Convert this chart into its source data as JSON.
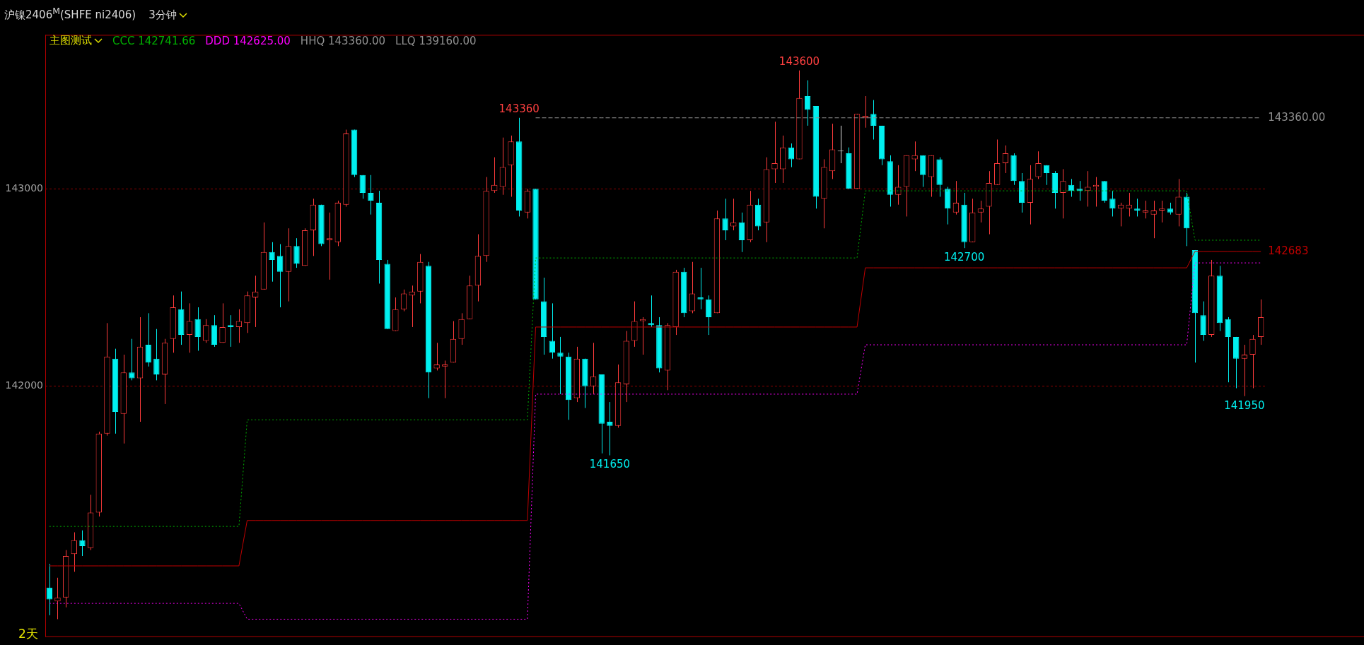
{
  "chart_data": {
    "type": "candlestick",
    "title": "沪镍2406$^{M}$(SHFE ni2406)",
    "subtitle": "3分钟",
    "legend_title": "主图测试",
    "legend": "top left",
    "grid": "y",
    "marker": "none",
    "ylim": [
      140730,
      143780
    ],
    "yticks": [
      142000,
      143000
    ],
    "categories": [
      null,
      null,
      null,
      null,
      null,
      null,
      null,
      null,
      null,
      null,
      null,
      null,
      null,
      null,
      null,
      null,
      null,
      null,
      null,
      null,
      null,
      null,
      null,
      null,
      null,
      null,
      null,
      null,
      null,
      null,
      null,
      null,
      null,
      null,
      null,
      null,
      null,
      null,
      null,
      null,
      null,
      null,
      null,
      null,
      null,
      null,
      null,
      null,
      null,
      null,
      null,
      null,
      null,
      null,
      null,
      null,
      null,
      null,
      null,
      null,
      null,
      null,
      null,
      null,
      null,
      null,
      null,
      null,
      null,
      null,
      null,
      null,
      null,
      null,
      null,
      null,
      null,
      null,
      null,
      null,
      null,
      null,
      null,
      null,
      null,
      null,
      null,
      null,
      null,
      null,
      null,
      null,
      null,
      null,
      null,
      null,
      null,
      null,
      null,
      null,
      null,
      null,
      null,
      null,
      null,
      null,
      null,
      null,
      null,
      null,
      null,
      null,
      null,
      null,
      null,
      null,
      null,
      null,
      null,
      null,
      null,
      null,
      null,
      null,
      null,
      null,
      null,
      null,
      null,
      null,
      null,
      null,
      null,
      null,
      null,
      null,
      null,
      null,
      null,
      null,
      null,
      null,
      null,
      null,
      null,
      null,
      null,
      null
    ],
    "ohlc": [
      [
        140980,
        141100,
        140840,
        140920
      ],
      [
        140910,
        141030,
        140820,
        140930
      ],
      [
        140930,
        141170,
        140880,
        141140
      ],
      [
        141150,
        141260,
        141060,
        141220
      ],
      [
        141220,
        141270,
        141140,
        141190
      ],
      [
        141180,
        141450,
        141170,
        141360
      ],
      [
        141360,
        141770,
        141340,
        141760
      ],
      [
        141760,
        142320,
        141750,
        142150
      ],
      [
        142140,
        142190,
        141760,
        141870
      ],
      [
        141860,
        142160,
        141710,
        142070
      ],
      [
        142070,
        142240,
        142030,
        142040
      ],
      [
        142040,
        142350,
        141820,
        142200
      ],
      [
        142210,
        142370,
        142100,
        142120
      ],
      [
        142140,
        142290,
        142030,
        142060
      ],
      [
        142060,
        142240,
        141910,
        142220
      ],
      [
        142240,
        142460,
        142170,
        142400
      ],
      [
        142390,
        142480,
        142210,
        142260
      ],
      [
        142260,
        142420,
        142170,
        142330
      ],
      [
        142340,
        142400,
        142180,
        142250
      ],
      [
        142230,
        142340,
        142220,
        142310
      ],
      [
        142310,
        142360,
        142200,
        142210
      ],
      [
        142220,
        142420,
        142220,
        142300
      ],
      [
        142310,
        142360,
        142200,
        142300
      ],
      [
        142300,
        142390,
        142220,
        142330
      ],
      [
        142320,
        142480,
        142270,
        142460
      ],
      [
        142450,
        142560,
        142300,
        142480
      ],
      [
        142490,
        142830,
        142490,
        142680
      ],
      [
        142680,
        142730,
        142530,
        142640
      ],
      [
        142660,
        142720,
        142400,
        142580
      ],
      [
        142580,
        142800,
        142430,
        142710
      ],
      [
        142710,
        142750,
        142600,
        142620
      ],
      [
        142610,
        142800,
        142610,
        142790
      ],
      [
        142790,
        142950,
        142660,
        142920
      ],
      [
        142920,
        142920,
        142710,
        142720
      ],
      [
        142740,
        142880,
        142540,
        142750
      ],
      [
        142730,
        142940,
        142710,
        142930
      ],
      [
        142920,
        143300,
        142910,
        143280
      ],
      [
        143300,
        143300,
        143060,
        143070
      ],
      [
        143070,
        143070,
        142950,
        142980
      ],
      [
        142980,
        143070,
        142870,
        142940
      ],
      [
        142930,
        142990,
        142520,
        142640
      ],
      [
        142620,
        142640,
        142290,
        142290
      ],
      [
        142280,
        142450,
        142280,
        142390
      ],
      [
        142390,
        142490,
        142380,
        142470
      ],
      [
        142460,
        142510,
        142300,
        142480
      ],
      [
        142480,
        142670,
        142420,
        142630
      ],
      [
        142610,
        142630,
        141940,
        142070
      ],
      [
        142090,
        142220,
        142080,
        142110
      ],
      [
        142100,
        142130,
        141940,
        142110
      ],
      [
        142120,
        142330,
        142120,
        142240
      ],
      [
        142240,
        142370,
        142210,
        142340
      ],
      [
        142340,
        142560,
        142340,
        142510
      ],
      [
        142510,
        142770,
        142430,
        142660
      ],
      [
        142660,
        143060,
        142630,
        142990
      ],
      [
        142990,
        143160,
        142980,
        143020
      ],
      [
        143010,
        143260,
        142970,
        143110
      ],
      [
        143120,
        143270,
        142960,
        143240
      ],
      [
        143240,
        143360,
        142860,
        142890
      ],
      [
        142880,
        143000,
        142850,
        142990
      ],
      [
        143000,
        143000,
        142440,
        142440
      ],
      [
        142430,
        142550,
        142160,
        142250
      ],
      [
        142230,
        142420,
        142140,
        142170
      ],
      [
        142170,
        142250,
        141960,
        142150
      ],
      [
        142150,
        142170,
        141830,
        141930
      ],
      [
        141940,
        142200,
        141920,
        142140
      ],
      [
        142140,
        142140,
        141890,
        142000
      ],
      [
        142000,
        142220,
        141960,
        142050
      ],
      [
        142060,
        142060,
        141660,
        141810
      ],
      [
        141820,
        141920,
        141650,
        141800
      ],
      [
        141800,
        142110,
        141790,
        142020
      ],
      [
        142010,
        142280,
        141920,
        142230
      ],
      [
        142230,
        142430,
        142200,
        142330
      ],
      [
        142330,
        142350,
        142160,
        142340
      ],
      [
        142320,
        142460,
        142300,
        142310
      ],
      [
        142310,
        142350,
        142070,
        142090
      ],
      [
        142080,
        142320,
        141980,
        142310
      ],
      [
        142300,
        142590,
        142260,
        142580
      ],
      [
        142580,
        142600,
        142350,
        142370
      ],
      [
        142380,
        142630,
        142370,
        142470
      ],
      [
        142450,
        142600,
        142390,
        142440
      ],
      [
        142440,
        142460,
        142260,
        142350
      ],
      [
        142370,
        142890,
        142370,
        142850
      ],
      [
        142850,
        142950,
        142740,
        142790
      ],
      [
        142810,
        142950,
        142790,
        142830
      ],
      [
        142830,
        142880,
        142680,
        142740
      ],
      [
        142740,
        142990,
        142730,
        142920
      ],
      [
        142920,
        142950,
        142790,
        142810
      ],
      [
        142830,
        143160,
        142730,
        143100
      ],
      [
        143100,
        143340,
        143030,
        143130
      ],
      [
        143100,
        143270,
        143030,
        143210
      ],
      [
        143210,
        143230,
        143110,
        143150
      ],
      [
        143150,
        143600,
        143150,
        143460
      ],
      [
        143470,
        143550,
        143320,
        143400
      ],
      [
        143420,
        143420,
        142900,
        142960
      ],
      [
        142950,
        143150,
        142800,
        143110
      ],
      [
        143090,
        143330,
        143050,
        143200
      ],
      [
        143190,
        143320,
        143130,
        143190
      ],
      [
        143180,
        143210,
        143000,
        143000
      ],
      [
        143000,
        143380,
        143000,
        143380
      ],
      [
        143360,
        143470,
        143310,
        143370
      ],
      [
        143380,
        143450,
        143250,
        143320
      ],
      [
        143320,
        143320,
        143120,
        143150
      ],
      [
        143140,
        143170,
        142910,
        142970
      ],
      [
        142970,
        143120,
        142920,
        143010
      ],
      [
        143010,
        143170,
        142860,
        143170
      ],
      [
        143150,
        143240,
        143090,
        143170
      ],
      [
        143170,
        143170,
        143010,
        143070
      ],
      [
        143060,
        143170,
        142960,
        143170
      ],
      [
        143150,
        143160,
        142960,
        143020
      ],
      [
        143000,
        143010,
        142820,
        142900
      ],
      [
        142880,
        143040,
        142870,
        142930
      ],
      [
        142920,
        142980,
        142700,
        142730
      ],
      [
        142730,
        142950,
        142730,
        142880
      ],
      [
        142880,
        142940,
        142830,
        142900
      ],
      [
        142910,
        143090,
        142770,
        143030
      ],
      [
        143020,
        143250,
        143020,
        143130
      ],
      [
        143130,
        143220,
        143080,
        143180
      ],
      [
        143170,
        143180,
        143020,
        143040
      ],
      [
        143040,
        143080,
        142880,
        142930
      ],
      [
        142930,
        143120,
        142820,
        143050
      ],
      [
        143060,
        143190,
        143050,
        143130
      ],
      [
        143120,
        143120,
        143020,
        143080
      ],
      [
        143080,
        143090,
        142900,
        142980
      ],
      [
        142980,
        143100,
        142850,
        143040
      ],
      [
        143020,
        143050,
        142960,
        142990
      ],
      [
        143000,
        143040,
        142940,
        142990
      ],
      [
        142990,
        143090,
        142910,
        143010
      ],
      [
        143010,
        143060,
        142910,
        143020
      ],
      [
        143040,
        143040,
        142930,
        142940
      ],
      [
        142950,
        142990,
        142860,
        142900
      ],
      [
        142900,
        142930,
        142810,
        142920
      ],
      [
        142900,
        142980,
        142860,
        142920
      ],
      [
        142900,
        142950,
        142860,
        142890
      ],
      [
        142880,
        142940,
        142850,
        142890
      ],
      [
        142870,
        142940,
        142750,
        142890
      ],
      [
        142890,
        142940,
        142830,
        142900
      ],
      [
        142900,
        142930,
        142870,
        142880
      ],
      [
        142870,
        143050,
        142810,
        142960
      ],
      [
        142960,
        142980,
        142710,
        142800
      ],
      [
        142690,
        142690,
        142120,
        142370
      ],
      [
        142360,
        142430,
        142230,
        142260
      ],
      [
        142260,
        142640,
        142250,
        142560
      ],
      [
        142560,
        142610,
        142280,
        142320
      ],
      [
        142340,
        142350,
        142020,
        142250
      ],
      [
        142250,
        142250,
        141990,
        142140
      ],
      [
        142140,
        142210,
        141950,
        142160
      ],
      [
        142160,
        142260,
        141990,
        142240
      ],
      [
        142250,
        142440,
        142210,
        142350
      ]
    ],
    "colors": [
      "#00f0f0",
      "#ff3b3b",
      "#ff3b3b",
      "#ff3b3b",
      "#00f0f0",
      "#ff3b3b",
      "#ff3b3b",
      "#ff3b3b",
      "#00f0f0",
      "#ff3b3b",
      "#00f0f0",
      "#ff3b3b",
      "#00f0f0",
      "#00f0f0",
      "#ff3b3b",
      "#ff3b3b",
      "#00f0f0",
      "#ff3b3b",
      "#00f0f0",
      "#ff3b3b",
      "#00f0f0",
      "#ff3b3b",
      "#00f0f0",
      "#ff3b3b",
      "#ff3b3b",
      "#ff3b3b",
      "#ff3b3b",
      "#00f0f0",
      "#00f0f0",
      "#ff3b3b",
      "#00f0f0",
      "#ff3b3b",
      "#ff3b3b",
      "#00f0f0",
      "#ff3b3b",
      "#ff3b3b",
      "#ff3b3b",
      "#00f0f0",
      "#00f0f0",
      "#00f0f0",
      "#00f0f0",
      "#00f0f0",
      "#ff3b3b",
      "#ff3b3b",
      "#ff3b3b",
      "#ff3b3b",
      "#00f0f0",
      "#ff3b3b",
      "#ff3b3b",
      "#ff3b3b",
      "#ff3b3b",
      "#ff3b3b",
      "#ff3b3b",
      "#ff3b3b",
      "#ff3b3b",
      "#ff3b3b",
      "#ff3b3b",
      "#00f0f0",
      "#ff3b3b",
      "#00f0f0",
      "#00f0f0",
      "#00f0f0",
      "#00f0f0",
      "#00f0f0",
      "#ff3b3b",
      "#00f0f0",
      "#ff3b3b",
      "#00f0f0",
      "#00f0f0",
      "#ff3b3b",
      "#ff3b3b",
      "#ff3b3b",
      "#ff3b3b",
      "#00f0f0",
      "#00f0f0",
      "#ff3b3b",
      "#ff3b3b",
      "#00f0f0",
      "#ff3b3b",
      "#00f0f0",
      "#00f0f0",
      "#ff3b3b",
      "#00f0f0",
      "#ff3b3b",
      "#00f0f0",
      "#ff3b3b",
      "#00f0f0",
      "#ff3b3b",
      "#ff3b3b",
      "#ff3b3b",
      "#00f0f0",
      "#ff3b3b",
      "#00f0f0",
      "#00f0f0",
      "#ff3b3b",
      "#ff3b3b",
      "#e0e0e0",
      "#00f0f0",
      "#ff3b3b",
      "#ff3b3b",
      "#00f0f0",
      "#00f0f0",
      "#00f0f0",
      "#ff3b3b",
      "#ff3b3b",
      "#ff3b3b",
      "#00f0f0",
      "#ff3b3b",
      "#00f0f0",
      "#00f0f0",
      "#ff3b3b",
      "#00f0f0",
      "#ff3b3b",
      "#ff3b3b",
      "#ff3b3b",
      "#ff3b3b",
      "#ff3b3b",
      "#00f0f0",
      "#00f0f0",
      "#ff3b3b",
      "#ff3b3b",
      "#00f0f0",
      "#00f0f0",
      "#ff3b3b",
      "#00f0f0",
      "#00f0f0",
      "#ff3b3b",
      "#ff3b3b",
      "#00f0f0",
      "#00f0f0",
      "#ff3b3b",
      "#ff3b3b",
      "#00f0f0",
      "#ff3b3b",
      "#ff3b3b",
      "#ff3b3b",
      "#00f0f0",
      "#ff3b3b",
      "#00f0f0",
      "#00f0f0",
      "#00f0f0",
      "#ff3b3b",
      "#00f0f0",
      "#00f0f0",
      "#00f0f0",
      "#ff3b3b",
      "#ff3b3b",
      "#ff3b3b"
    ],
    "series": [
      {
        "name": "CCC 142741.66",
        "type": "line",
        "color": "#00b000",
        "line_style": "dotted",
        "values": [
          141290,
          141290,
          141290,
          141290,
          141290,
          141290,
          141290,
          141290,
          141290,
          141290,
          141290,
          141290,
          141290,
          141290,
          141290,
          141290,
          141290,
          141290,
          141290,
          141290,
          141290,
          141290,
          141290,
          141290,
          141830,
          141830,
          141830,
          141830,
          141830,
          141830,
          141830,
          141830,
          141830,
          141830,
          141830,
          141830,
          141830,
          141830,
          141830,
          141830,
          141830,
          141830,
          141830,
          141830,
          141830,
          141830,
          141830,
          141830,
          141830,
          141830,
          141830,
          141830,
          141830,
          141830,
          141830,
          141830,
          141830,
          141830,
          141830,
          142650,
          142650,
          142650,
          142650,
          142650,
          142650,
          142650,
          142650,
          142650,
          142650,
          142650,
          142650,
          142650,
          142650,
          142650,
          142650,
          142650,
          142650,
          142650,
          142650,
          142650,
          142650,
          142650,
          142650,
          142650,
          142650,
          142650,
          142650,
          142650,
          142650,
          142650,
          142650,
          142650,
          142650,
          142650,
          142650,
          142650,
          142650,
          142650,
          142650,
          142990,
          142990,
          142990,
          142990,
          142990,
          142990,
          142990,
          142990,
          142990,
          142990,
          142990,
          142990,
          142990,
          142990,
          142990,
          142990,
          142990,
          142990,
          142990,
          142990,
          142990,
          142990,
          142990,
          142990,
          142990,
          142990,
          142990,
          142990,
          142990,
          142990,
          142990,
          142990,
          142990,
          142990,
          142990,
          142990,
          142990,
          142990,
          142990,
          142990,
          142740,
          142740,
          142740,
          142740,
          142740,
          142740,
          142740,
          142740,
          142740
        ]
      },
      {
        "name": "DDD 142625.00",
        "type": "line",
        "color": "#ff00ff",
        "line_style": "dotted",
        "values": [
          140900,
          140900,
          140900,
          140900,
          140900,
          140900,
          140900,
          140900,
          140900,
          140900,
          140900,
          140900,
          140900,
          140900,
          140900,
          140900,
          140900,
          140900,
          140900,
          140900,
          140900,
          140900,
          140900,
          140900,
          140820,
          140820,
          140820,
          140820,
          140820,
          140820,
          140820,
          140820,
          140820,
          140820,
          140820,
          140820,
          140820,
          140820,
          140820,
          140820,
          140820,
          140820,
          140820,
          140820,
          140820,
          140820,
          140820,
          140820,
          140820,
          140820,
          140820,
          140820,
          140820,
          140820,
          140820,
          140820,
          140820,
          140820,
          140820,
          141960,
          141960,
          141960,
          141960,
          141960,
          141960,
          141960,
          141960,
          141960,
          141960,
          141960,
          141960,
          141960,
          141960,
          141960,
          141960,
          141960,
          141960,
          141960,
          141960,
          141960,
          141960,
          141960,
          141960,
          141960,
          141960,
          141960,
          141960,
          141960,
          141960,
          141960,
          141960,
          141960,
          141960,
          141960,
          141960,
          141960,
          141960,
          141960,
          141960,
          142210,
          142210,
          142210,
          142210,
          142210,
          142210,
          142210,
          142210,
          142210,
          142210,
          142210,
          142210,
          142210,
          142210,
          142210,
          142210,
          142210,
          142210,
          142210,
          142210,
          142210,
          142210,
          142210,
          142210,
          142210,
          142210,
          142210,
          142210,
          142210,
          142210,
          142210,
          142210,
          142210,
          142210,
          142210,
          142210,
          142210,
          142210,
          142210,
          142210,
          142625,
          142625,
          142625,
          142625,
          142625,
          142625,
          142625,
          142625,
          142625
        ]
      },
      {
        "name": "HHQ 143360.00",
        "type": "line",
        "color": "#909090",
        "line_style": "dashed",
        "values": [
          null,
          null,
          null,
          null,
          null,
          null,
          null,
          null,
          null,
          null,
          null,
          null,
          null,
          null,
          null,
          null,
          null,
          null,
          null,
          null,
          null,
          null,
          null,
          null,
          null,
          null,
          null,
          null,
          null,
          null,
          null,
          null,
          null,
          null,
          null,
          null,
          null,
          null,
          null,
          null,
          null,
          null,
          null,
          null,
          null,
          null,
          null,
          null,
          null,
          null,
          null,
          null,
          null,
          null,
          null,
          null,
          null,
          null,
          null,
          143360,
          143360,
          143360,
          143360,
          143360,
          143360,
          143360,
          143360,
          143360,
          143360,
          143360,
          143360,
          143360,
          143360,
          143360,
          143360,
          143360,
          143360,
          143360,
          143360,
          143360,
          143360,
          143360,
          143360,
          143360,
          143360,
          143360,
          143360,
          143360,
          143360,
          143360,
          143360,
          143360,
          143360,
          143360,
          143360,
          143360,
          143360,
          143360,
          143360,
          143360,
          143360,
          143360,
          143360,
          143360,
          143360,
          143360,
          143360,
          143360,
          143360,
          143360,
          143360,
          143360,
          143360,
          143360,
          143360,
          143360,
          143360,
          143360,
          143360,
          143360,
          143360,
          143360,
          143360,
          143360,
          143360,
          143360,
          143360,
          143360,
          143360,
          143360,
          143360,
          143360,
          143360,
          143360,
          143360,
          143360,
          143360,
          143360,
          143360,
          143360,
          143360,
          143360,
          143360,
          143360,
          143360,
          143360,
          143360,
          143360
        ],
        "value_labels": [
          null,
          null,
          null,
          null,
          null,
          null,
          null,
          null,
          null,
          null,
          null,
          null,
          null,
          null,
          null,
          null,
          null,
          null,
          null,
          null,
          null,
          null,
          null,
          null,
          null,
          null,
          null,
          null,
          null,
          null,
          null,
          null,
          null,
          null,
          null,
          null,
          null,
          null,
          null,
          null,
          null,
          null,
          null,
          null,
          null,
          null,
          null,
          null,
          null,
          null,
          null,
          null,
          null,
          null,
          null,
          null,
          null,
          null,
          null,
          null,
          null,
          null,
          null,
          null,
          null,
          null,
          null,
          null,
          null,
          null,
          null,
          null,
          null,
          null,
          null,
          null,
          null,
          null,
          null,
          null,
          null,
          null,
          null,
          null,
          null,
          null,
          null,
          null,
          null,
          null,
          null,
          null,
          null,
          null,
          null,
          null,
          null,
          null,
          null,
          null,
          null,
          null,
          null,
          null,
          null,
          null,
          null,
          null,
          null,
          null,
          null,
          null,
          null,
          null,
          null,
          null,
          null,
          null,
          null,
          null,
          null,
          null,
          null,
          null,
          null,
          null,
          null,
          null,
          null,
          null,
          null,
          null,
          null,
          null,
          null,
          null,
          null,
          null,
          null,
          null,
          null,
          null,
          null,
          null,
          null,
          null,
          null,
          "143360.00"
        ]
      },
      {
        "type": "line",
        "color": "#c00000",
        "line_style": "solid",
        "values": [
          141090,
          141090,
          141090,
          141090,
          141090,
          141090,
          141090,
          141090,
          141090,
          141090,
          141090,
          141090,
          141090,
          141090,
          141090,
          141090,
          141090,
          141090,
          141090,
          141090,
          141090,
          141090,
          141090,
          141090,
          141320,
          141320,
          141320,
          141320,
          141320,
          141320,
          141320,
          141320,
          141320,
          141320,
          141320,
          141320,
          141320,
          141320,
          141320,
          141320,
          141320,
          141320,
          141320,
          141320,
          141320,
          141320,
          141320,
          141320,
          141320,
          141320,
          141320,
          141320,
          141320,
          141320,
          141320,
          141320,
          141320,
          141320,
          141320,
          142300,
          142300,
          142300,
          142300,
          142300,
          142300,
          142300,
          142300,
          142300,
          142300,
          142300,
          142300,
          142300,
          142300,
          142300,
          142300,
          142300,
          142300,
          142300,
          142300,
          142300,
          142300,
          142300,
          142300,
          142300,
          142300,
          142300,
          142300,
          142300,
          142300,
          142300,
          142300,
          142300,
          142300,
          142300,
          142300,
          142300,
          142300,
          142300,
          142300,
          142600,
          142600,
          142600,
          142600,
          142600,
          142600,
          142600,
          142600,
          142600,
          142600,
          142600,
          142600,
          142600,
          142600,
          142600,
          142600,
          142600,
          142600,
          142600,
          142600,
          142600,
          142600,
          142600,
          142600,
          142600,
          142600,
          142600,
          142600,
          142600,
          142600,
          142600,
          142600,
          142600,
          142600,
          142600,
          142600,
          142600,
          142600,
          142600,
          142600,
          142683,
          142683,
          142683,
          142683,
          142683,
          142683,
          142683,
          142683,
          142683
        ],
        "value_labels": [
          null,
          null,
          null,
          null,
          null,
          null,
          null,
          null,
          null,
          null,
          null,
          null,
          null,
          null,
          null,
          null,
          null,
          null,
          null,
          null,
          null,
          null,
          null,
          null,
          null,
          null,
          null,
          null,
          null,
          null,
          null,
          null,
          null,
          null,
          null,
          null,
          null,
          null,
          null,
          null,
          null,
          null,
          null,
          null,
          null,
          null,
          null,
          null,
          null,
          null,
          null,
          null,
          null,
          null,
          null,
          null,
          null,
          null,
          null,
          null,
          null,
          null,
          null,
          null,
          null,
          null,
          null,
          null,
          null,
          null,
          null,
          null,
          null,
          null,
          null,
          null,
          null,
          null,
          null,
          null,
          null,
          null,
          null,
          null,
          null,
          null,
          null,
          null,
          null,
          null,
          null,
          null,
          null,
          null,
          null,
          null,
          null,
          null,
          null,
          null,
          null,
          null,
          null,
          null,
          null,
          null,
          null,
          null,
          null,
          null,
          null,
          null,
          null,
          null,
          null,
          null,
          null,
          null,
          null,
          null,
          null,
          null,
          null,
          null,
          null,
          null,
          null,
          null,
          null,
          null,
          null,
          null,
          null,
          null,
          null,
          null,
          null,
          null,
          null,
          null,
          null,
          null,
          null,
          null,
          null,
          null,
          null,
          "142683"
        ]
      }
    ],
    "annotations": [
      "LLQ 139160.00",
      "2天",
      {
        "text": "143600",
        "y": 143600
      },
      {
        "text": "143360",
        "y": 143360
      },
      {
        "text": "141650",
        "y": 141650
      },
      {
        "text": "142700",
        "y": 142700
      },
      {
        "text": "141950",
        "y": 141950
      }
    ]
  }
}
